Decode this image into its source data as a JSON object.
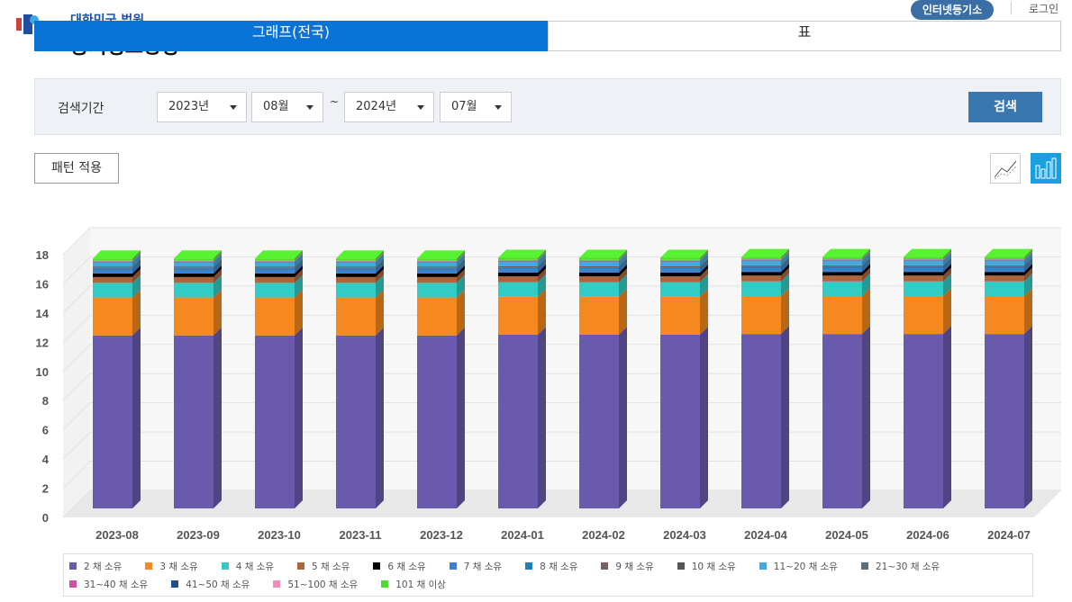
{
  "header": {
    "org": "대한민국 법원",
    "title": "등기정보광장",
    "button": "인터넷등기소",
    "login": "로그인"
  },
  "tabs": [
    "그래프(전국)",
    "표"
  ],
  "search": {
    "label": "검색기간",
    "from_year": "2023년",
    "from_month": "08월",
    "separator": "~",
    "to_year": "2024년",
    "to_month": "07월",
    "button": "검색"
  },
  "pattern_button": "패턴 적용",
  "chart_data": {
    "type": "bar",
    "stacked": true,
    "categories": [
      "2023-08",
      "2023-09",
      "2023-10",
      "2023-11",
      "2023-12",
      "2024-01",
      "2024-02",
      "2024-03",
      "2024-04",
      "2024-05",
      "2024-06",
      "2024-07"
    ],
    "series": [
      {
        "name": "2 채 소유",
        "color": "#6a5aad",
        "values": [
          11.85,
          11.85,
          11.85,
          11.85,
          11.85,
          11.9,
          11.9,
          11.9,
          11.95,
          11.95,
          11.95,
          11.95
        ]
      },
      {
        "name": "3 채 소유",
        "color": "#f5891f",
        "values": [
          2.6,
          2.6,
          2.6,
          2.6,
          2.6,
          2.6,
          2.6,
          2.6,
          2.6,
          2.6,
          2.6,
          2.6
        ]
      },
      {
        "name": "4 채 소유",
        "color": "#33ccc4",
        "values": [
          1.0,
          1.0,
          1.0,
          1.0,
          1.0,
          1.0,
          1.0,
          1.0,
          1.0,
          1.0,
          1.0,
          1.0
        ]
      },
      {
        "name": "5 채 소유",
        "color": "#b0643c",
        "values": [
          0.4,
          0.4,
          0.4,
          0.4,
          0.4,
          0.4,
          0.4,
          0.4,
          0.4,
          0.4,
          0.4,
          0.4
        ]
      },
      {
        "name": "6 채 소유",
        "color": "#000000",
        "values": [
          0.25,
          0.25,
          0.25,
          0.25,
          0.25,
          0.25,
          0.25,
          0.25,
          0.25,
          0.25,
          0.25,
          0.25
        ]
      },
      {
        "name": "7 채 소유",
        "color": "#3f7fd0",
        "values": [
          0.2,
          0.2,
          0.2,
          0.2,
          0.2,
          0.2,
          0.2,
          0.2,
          0.2,
          0.2,
          0.2,
          0.2
        ]
      },
      {
        "name": "8 채 소유",
        "color": "#1f7fbf",
        "values": [
          0.15,
          0.15,
          0.15,
          0.15,
          0.15,
          0.15,
          0.15,
          0.15,
          0.15,
          0.15,
          0.15,
          0.15
        ]
      },
      {
        "name": "9 채 소유",
        "color": "#7a6060",
        "values": [
          0.05,
          0.05,
          0.05,
          0.05,
          0.05,
          0.05,
          0.05,
          0.05,
          0.05,
          0.05,
          0.05,
          0.05
        ]
      },
      {
        "name": "10 채 소유",
        "color": "#555555",
        "values": [
          0.05,
          0.05,
          0.05,
          0.05,
          0.05,
          0.05,
          0.05,
          0.05,
          0.05,
          0.05,
          0.05,
          0.05
        ]
      },
      {
        "name": "11~20 채 소유",
        "color": "#3fa9e0",
        "values": [
          0.3,
          0.3,
          0.3,
          0.3,
          0.3,
          0.3,
          0.3,
          0.3,
          0.3,
          0.3,
          0.3,
          0.3
        ]
      },
      {
        "name": "21~30 채 소유",
        "color": "#5a6e80",
        "values": [
          0.05,
          0.05,
          0.05,
          0.05,
          0.05,
          0.05,
          0.05,
          0.05,
          0.05,
          0.05,
          0.05,
          0.05
        ]
      },
      {
        "name": "31~40 채 소유",
        "color": "#d04fa0",
        "values": [
          0.02,
          0.02,
          0.02,
          0.02,
          0.02,
          0.02,
          0.02,
          0.02,
          0.02,
          0.02,
          0.02,
          0.02
        ]
      },
      {
        "name": "41~50 채 소유",
        "color": "#1f4f8f",
        "values": [
          0.02,
          0.02,
          0.02,
          0.02,
          0.02,
          0.02,
          0.02,
          0.02,
          0.02,
          0.02,
          0.02,
          0.02
        ]
      },
      {
        "name": "51~100 채 소유",
        "color": "#f08cb8",
        "values": [
          0.03,
          0.03,
          0.03,
          0.03,
          0.03,
          0.03,
          0.03,
          0.03,
          0.03,
          0.03,
          0.03,
          0.03
        ]
      },
      {
        "name": "101 채 이상",
        "color": "#4fdc2c",
        "values": [
          0.15,
          0.15,
          0.15,
          0.15,
          0.15,
          0.15,
          0.15,
          0.15,
          0.15,
          0.15,
          0.15,
          0.15
        ]
      }
    ],
    "ylim": [
      0,
      18
    ],
    "yticks": [
      0,
      2,
      4,
      6,
      8,
      10,
      12,
      14,
      16,
      18
    ],
    "grid": true
  }
}
